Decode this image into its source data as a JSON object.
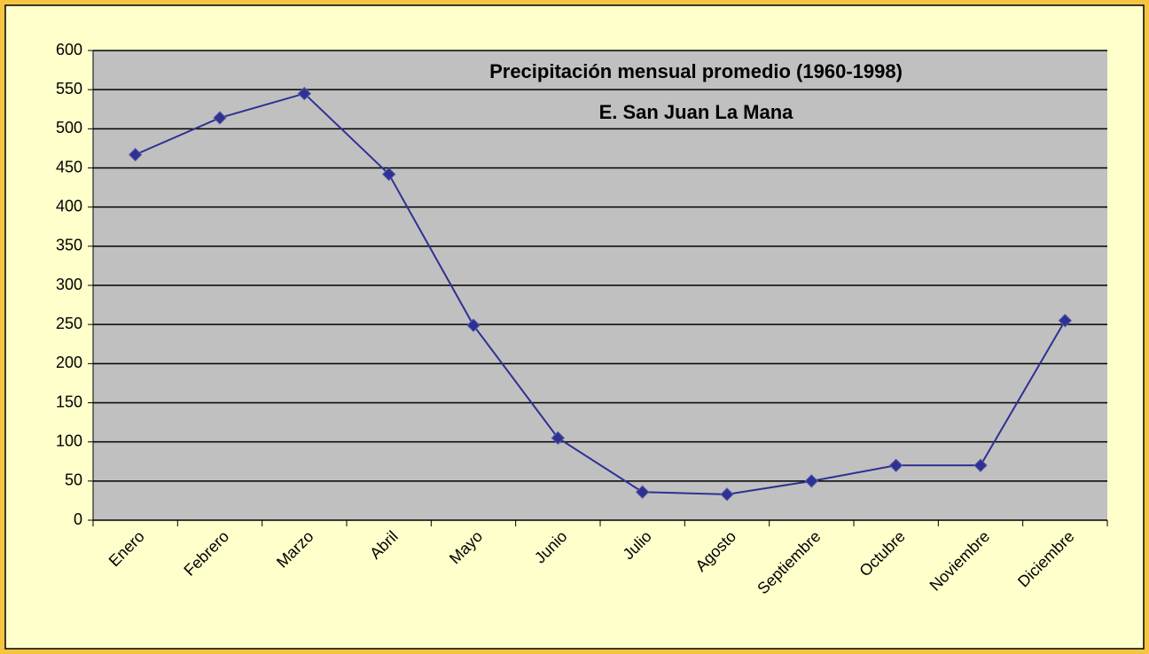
{
  "chart_data": {
    "type": "line",
    "title": "Precipitación mensual promedio (1960-1998)",
    "subtitle": "E. San Juan La Mana",
    "categories": [
      "Enero",
      "Febrero",
      "Marzo",
      "Abril",
      "Mayo",
      "Junio",
      "Julio",
      "Agosto",
      "Septiembre",
      "Octubre",
      "Noviembre",
      "Diciembre"
    ],
    "values": [
      467,
      514,
      545,
      442,
      249,
      105,
      36,
      33,
      50,
      70,
      70,
      255
    ],
    "color": "#2e3192",
    "ylim": [
      0,
      600
    ],
    "yticks": [
      0,
      50,
      100,
      150,
      200,
      250,
      300,
      350,
      400,
      450,
      500,
      550,
      600
    ],
    "grid": true
  }
}
